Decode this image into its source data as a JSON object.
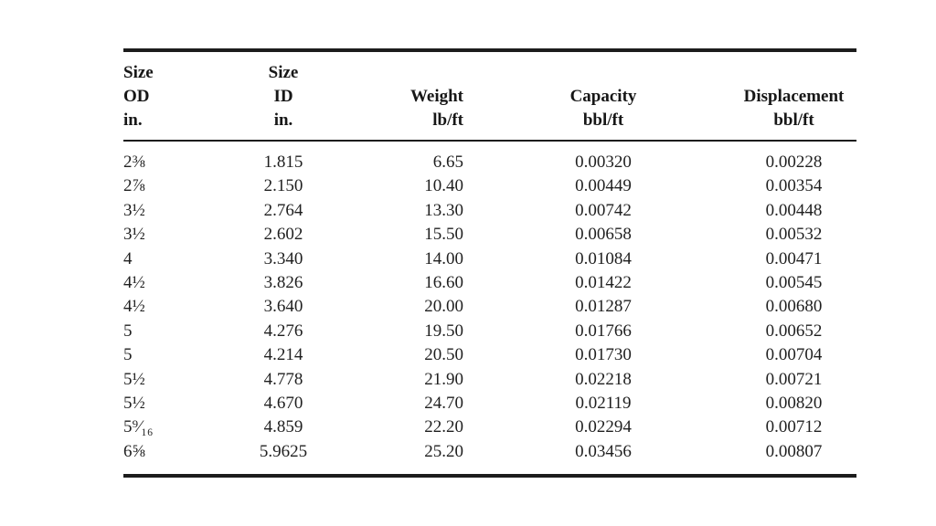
{
  "colors": {
    "background": "#ffffff",
    "text": "#1f1f1f",
    "rule": "#1c1c1c"
  },
  "table": {
    "headers": [
      [
        "Size",
        "OD",
        "in."
      ],
      [
        "Size",
        "ID",
        "in."
      ],
      [
        "Weight",
        "lb/ft"
      ],
      [
        "Capacity",
        "bbl/ft"
      ],
      [
        "Displacement",
        "bbl/ft"
      ]
    ],
    "rows": [
      [
        "2⅜",
        "1.815",
        "6.65",
        "0.00320",
        "0.00228"
      ],
      [
        "2⅞",
        "2.150",
        "10.40",
        "0.00449",
        "0.00354"
      ],
      [
        "3½",
        "2.764",
        "13.30",
        "0.00742",
        "0.00448"
      ],
      [
        "3½",
        "2.602",
        "15.50",
        "0.00658",
        "0.00532"
      ],
      [
        "4",
        "3.340",
        "14.00",
        "0.01084",
        "0.00471"
      ],
      [
        "4½",
        "3.826",
        "16.60",
        "0.01422",
        "0.00545"
      ],
      [
        "4½",
        "3.640",
        "20.00",
        "0.01287",
        "0.00680"
      ],
      [
        "5",
        "4.276",
        "19.50",
        "0.01766",
        "0.00652"
      ],
      [
        "5",
        "4.214",
        "20.50",
        "0.01730",
        "0.00704"
      ],
      [
        "5½",
        "4.778",
        "21.90",
        "0.02218",
        "0.00721"
      ],
      [
        "5½",
        "4.670",
        "24.70",
        "0.02119",
        "0.00820"
      ],
      [
        "5⁹⁄₁₆",
        "4.859",
        "22.20",
        "0.02294",
        "0.00712"
      ],
      [
        "6⅝",
        "5.9625",
        "25.20",
        "0.03456",
        "0.00807"
      ]
    ]
  }
}
